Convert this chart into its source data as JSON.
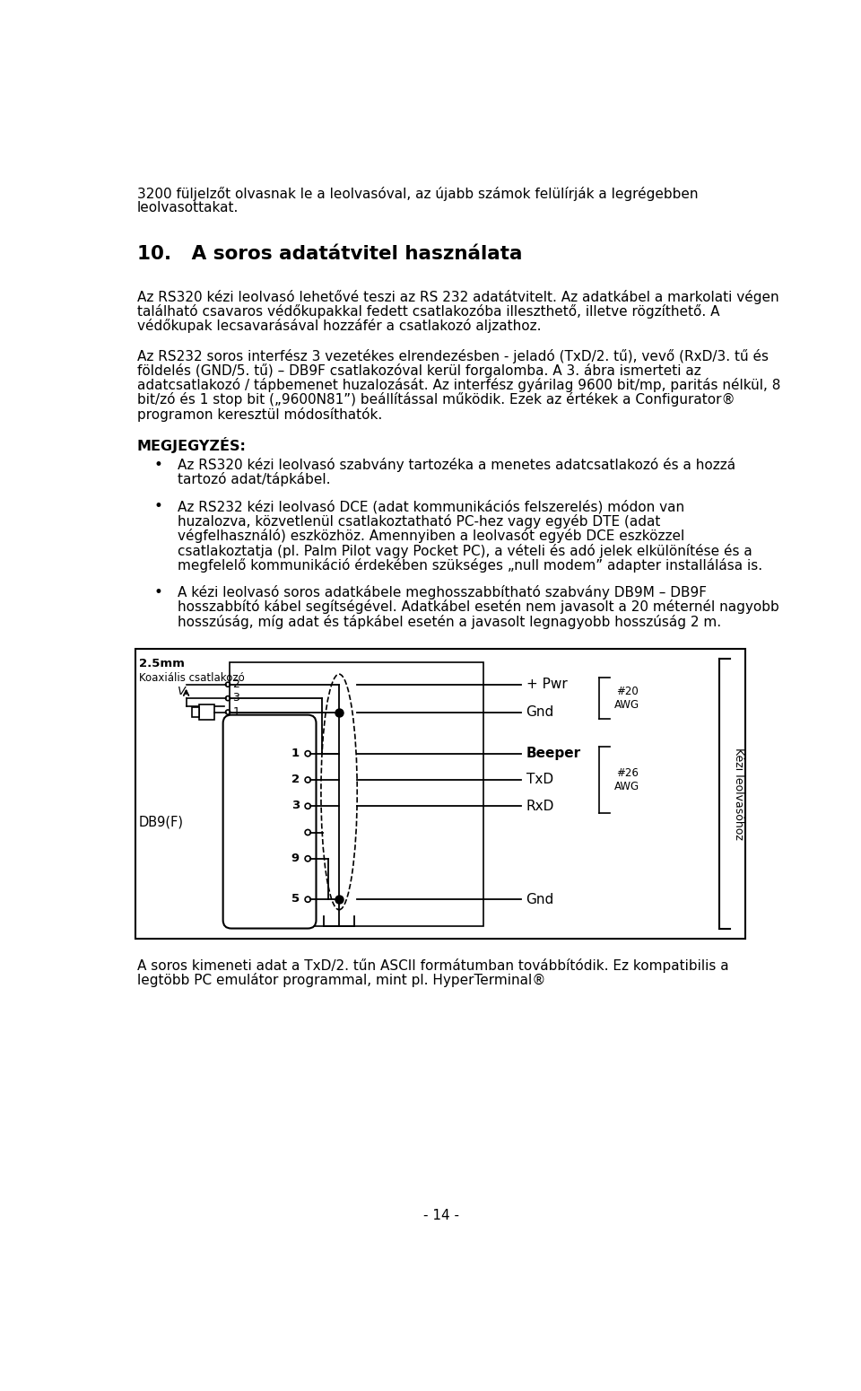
{
  "bg_color": "#ffffff",
  "font_family": "DejaVu Sans",
  "lm": 0.42,
  "rm": 9.18,
  "fs_body": 11.0,
  "fs_title": 15.5,
  "fs_note": 11.5,
  "lh": 0.212,
  "intro_lines": [
    "3200 füljelzőt olvasnak le a leolvasóval, az újabb számok felülírják a legrégebben",
    "leolvasottakat."
  ],
  "title": "10.   A soros adatátvitel használata",
  "p1_lines": [
    "Az RS320 kézi leolvasó lehetővé teszi az RS 232 adatátvitelt. Az adatkábel a markolati végen",
    "található csavaros védőkupakkal fedett csatlakozóba illeszthető, illetve rögzíthető. A",
    "védőkupak lecsavarásával hozzáfér a csatlakozó aljzathoz."
  ],
  "p2_lines": [
    "Az RS232 soros interfész 3 vezetékes elrendezésben - jeladó (TxD/2. tű), vevő (RxD/3. tű és",
    "földelés (GND/5. tű) – DB9F csatlakozóval kerül forgalomba. A 3. ábra ismerteti az",
    "adatcsatlakozó / tápbemenet huzalozását. Az interfész gyárilag 9600 bit/mp, paritás nélkül, 8",
    "bit/zó és 1 stop bit („9600N81”) beállítással működik. Ezek az értékek a Configurator®",
    "programon keresztül módosíthatók."
  ],
  "note_header": "MEGJEGYZÉS:",
  "b1_lines": [
    "Az RS320 kézi leolvasó szabvány tartozéka a menetes adatcsatlakozó és a hozzá",
    "tartozó adat/tápkábel."
  ],
  "b2_lines": [
    "Az RS232 kézi leolvasó DCE (adat kommunikációs felszerelés) módon van",
    "huzalozva, közvetlenül csatlakoztatható PC-hez vagy egyéb DTE (adat",
    "végfelhasználó) eszközhöz. Amennyiben a leolvasót egyéb DCE eszközzel",
    "csatlakoztatja (pl. Palm Pilot vagy Pocket PC), a vételi és adó jelek elkülönítése és a",
    "megfelelő kommunikáció érdekében szükséges „null modem” adapter installálása is."
  ],
  "b3_lines": [
    "A kézi leolvasó soros adatkábele meghosszabbítható szabvány DB9M – DB9F",
    "hosszabbító kábel segítségével. Adatkábel esetén nem javasolt a 20 méternél nagyobb",
    "hosszúság, míg adat és tápkábel esetén a javasolt legnagyobb hosszúság 2 m."
  ],
  "footer_lines": [
    "A soros kimeneti adat a TxD/2. tűn ASCII formátumban továbbítódik. Ez kompatibilis a",
    "legtöbb PC emulátor programmal, mint pl. HyperTerminal®"
  ],
  "page_number": "- 14 -"
}
